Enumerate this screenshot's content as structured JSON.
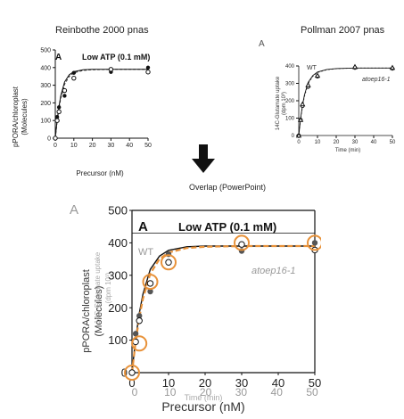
{
  "captions": {
    "left_title": "Reinbothe 2000 pnas",
    "right_title": "Pollman 2007 pnas",
    "overlap": "Overlap (PowerPoint)"
  },
  "arrow_icon": "down-arrow-icon",
  "panels": {
    "reinbothe": {
      "panel_letter": "A",
      "condition": "Low ATP  (0.1 mM)",
      "ylabel": "pPORA/chloroplast",
      "ylabel_unit": "(Molecules)",
      "xlabel": "Precursor (nM)"
    },
    "pollman": {
      "panel_letter": "A",
      "wt_label": "WT",
      "mutant_label": "atoep16-1",
      "ylabel": "14C-Glutamate uptake",
      "ylabel_unit": "(dpm 10³)",
      "xlabel": "Time (min)"
    },
    "overlay": {
      "panel_letter_a": "A",
      "panel_letter_b": "A",
      "condition": "Low ATP  (0.1 mM)",
      "wt_label": "WT",
      "mutant_label": "atoep16-1",
      "ylabel": "pPORA/chloroplast",
      "ylabel_unit": "(Molecules)",
      "ylabel_ghost": "14C-Glutamate uptake",
      "ylabel_ghost_unit": "(dpm 10³)",
      "xlabel": "Precursor (nM)",
      "xlabel_ghost": "Time (min)"
    }
  },
  "chart_data": [
    {
      "id": "reinbothe",
      "type": "scatter",
      "title": "Low ATP  (0.1 mM)",
      "xlabel": "Precursor (nM)",
      "ylabel": "pPORA/chloroplast (Molecules)",
      "xlim": [
        0,
        50
      ],
      "ylim": [
        0,
        500
      ],
      "xticks": [
        0,
        10,
        20,
        30,
        40,
        50
      ],
      "yticks": [
        0,
        100,
        200,
        300,
        400,
        500
      ],
      "grid": false,
      "series": [
        {
          "marker": "filled",
          "x": [
            0,
            1,
            2,
            5,
            10,
            30,
            50
          ],
          "y": [
            0,
            120,
            175,
            240,
            370,
            375,
            400
          ]
        },
        {
          "marker": "open",
          "x": [
            0,
            1,
            2,
            5,
            10,
            30,
            50
          ],
          "y": [
            0,
            100,
            150,
            270,
            340,
            390,
            375
          ]
        }
      ],
      "curves": [
        {
          "style": "solid",
          "x": [
            0,
            1,
            2,
            3,
            5,
            7.5,
            10,
            15,
            20,
            30,
            40,
            50
          ],
          "y": [
            0,
            105,
            183,
            242,
            318,
            359,
            377,
            388,
            390,
            390,
            390,
            390
          ]
        },
        {
          "style": "dashed",
          "x": [
            0,
            1,
            2,
            3,
            5,
            7.5,
            10,
            15,
            20,
            30,
            40,
            50
          ],
          "y": [
            0,
            95,
            170,
            228,
            305,
            350,
            370,
            384,
            388,
            390,
            390,
            390
          ]
        }
      ]
    },
    {
      "id": "pollman",
      "type": "scatter",
      "xlabel": "Time (min)",
      "ylabel": "14C-Glutamate uptake (dpm 10³)",
      "xlim": [
        0,
        50
      ],
      "ylim": [
        0,
        400
      ],
      "xticks": [
        0,
        10,
        20,
        30,
        40,
        50
      ],
      "yticks": [
        0,
        100,
        200,
        300,
        400
      ],
      "grid": false,
      "series": [
        {
          "name": "WT",
          "marker": "open-circle",
          "x": [
            0,
            1,
            2,
            5,
            10,
            30,
            50
          ],
          "y": [
            0,
            90,
            170,
            280,
            340,
            390,
            385
          ]
        },
        {
          "name": "atoep16-1",
          "marker": "triangle",
          "x": [
            0,
            1,
            2,
            5,
            10,
            30,
            50
          ],
          "y": [
            0,
            90,
            180,
            290,
            345,
            395,
            390
          ]
        }
      ],
      "curves": [
        {
          "style": "solid",
          "x": [
            0,
            1,
            2,
            3,
            5,
            7.5,
            10,
            15,
            20,
            30,
            40,
            50
          ],
          "y": [
            0,
            100,
            175,
            232,
            305,
            345,
            365,
            380,
            385,
            388,
            388,
            388
          ]
        },
        {
          "style": "dashed",
          "x": [
            0,
            1,
            2,
            3,
            5,
            7.5,
            10,
            15,
            20,
            30,
            40,
            50
          ],
          "y": [
            0,
            92,
            165,
            222,
            298,
            340,
            362,
            378,
            384,
            388,
            388,
            388
          ]
        }
      ]
    },
    {
      "id": "overlay",
      "type": "scatter",
      "title": "Low ATP  (0.1 mM)",
      "xlabel": "Precursor (nM)",
      "ylabel": "pPORA/chloroplast (Molecules)",
      "xlim": [
        0,
        50
      ],
      "ylim": [
        0,
        500
      ],
      "xticks": [
        0,
        10,
        20,
        30,
        40,
        50
      ],
      "yticks": [
        0,
        100,
        200,
        300,
        400,
        500
      ],
      "ghost_xticks": [
        0,
        10,
        20,
        30,
        40,
        50
      ],
      "ghost_yticks": [
        0,
        100,
        200,
        300,
        400
      ],
      "grid": false,
      "series": [
        {
          "marker": "filled",
          "x": [
            0,
            1,
            2,
            5,
            10,
            30,
            50
          ],
          "y": [
            0,
            120,
            175,
            250,
            365,
            375,
            400
          ]
        },
        {
          "marker": "open",
          "x": [
            0,
            1,
            2,
            5,
            10,
            30,
            50
          ],
          "y": [
            0,
            95,
            160,
            275,
            340,
            395,
            378
          ]
        },
        {
          "marker": "orange-highlight-ring",
          "x": [
            0,
            2,
            5,
            10,
            30,
            50
          ],
          "y": [
            0,
            90,
            280,
            340,
            400,
            400
          ]
        }
      ],
      "curves": [
        {
          "style": "solid",
          "x": [
            0,
            1,
            2,
            3,
            5,
            7.5,
            10,
            15,
            20,
            30,
            40,
            50
          ],
          "y": [
            0,
            105,
            183,
            242,
            318,
            359,
            377,
            388,
            390,
            390,
            390,
            390
          ]
        },
        {
          "style": "dashed-orange",
          "x": [
            0,
            1,
            2,
            3,
            5,
            7.5,
            10,
            15,
            20,
            30,
            40,
            50
          ],
          "y": [
            0,
            95,
            170,
            228,
            305,
            350,
            370,
            384,
            388,
            390,
            390,
            390
          ]
        }
      ],
      "colors": {
        "highlight": "#e8923a",
        "ghost": "#9a9a9a"
      }
    }
  ]
}
